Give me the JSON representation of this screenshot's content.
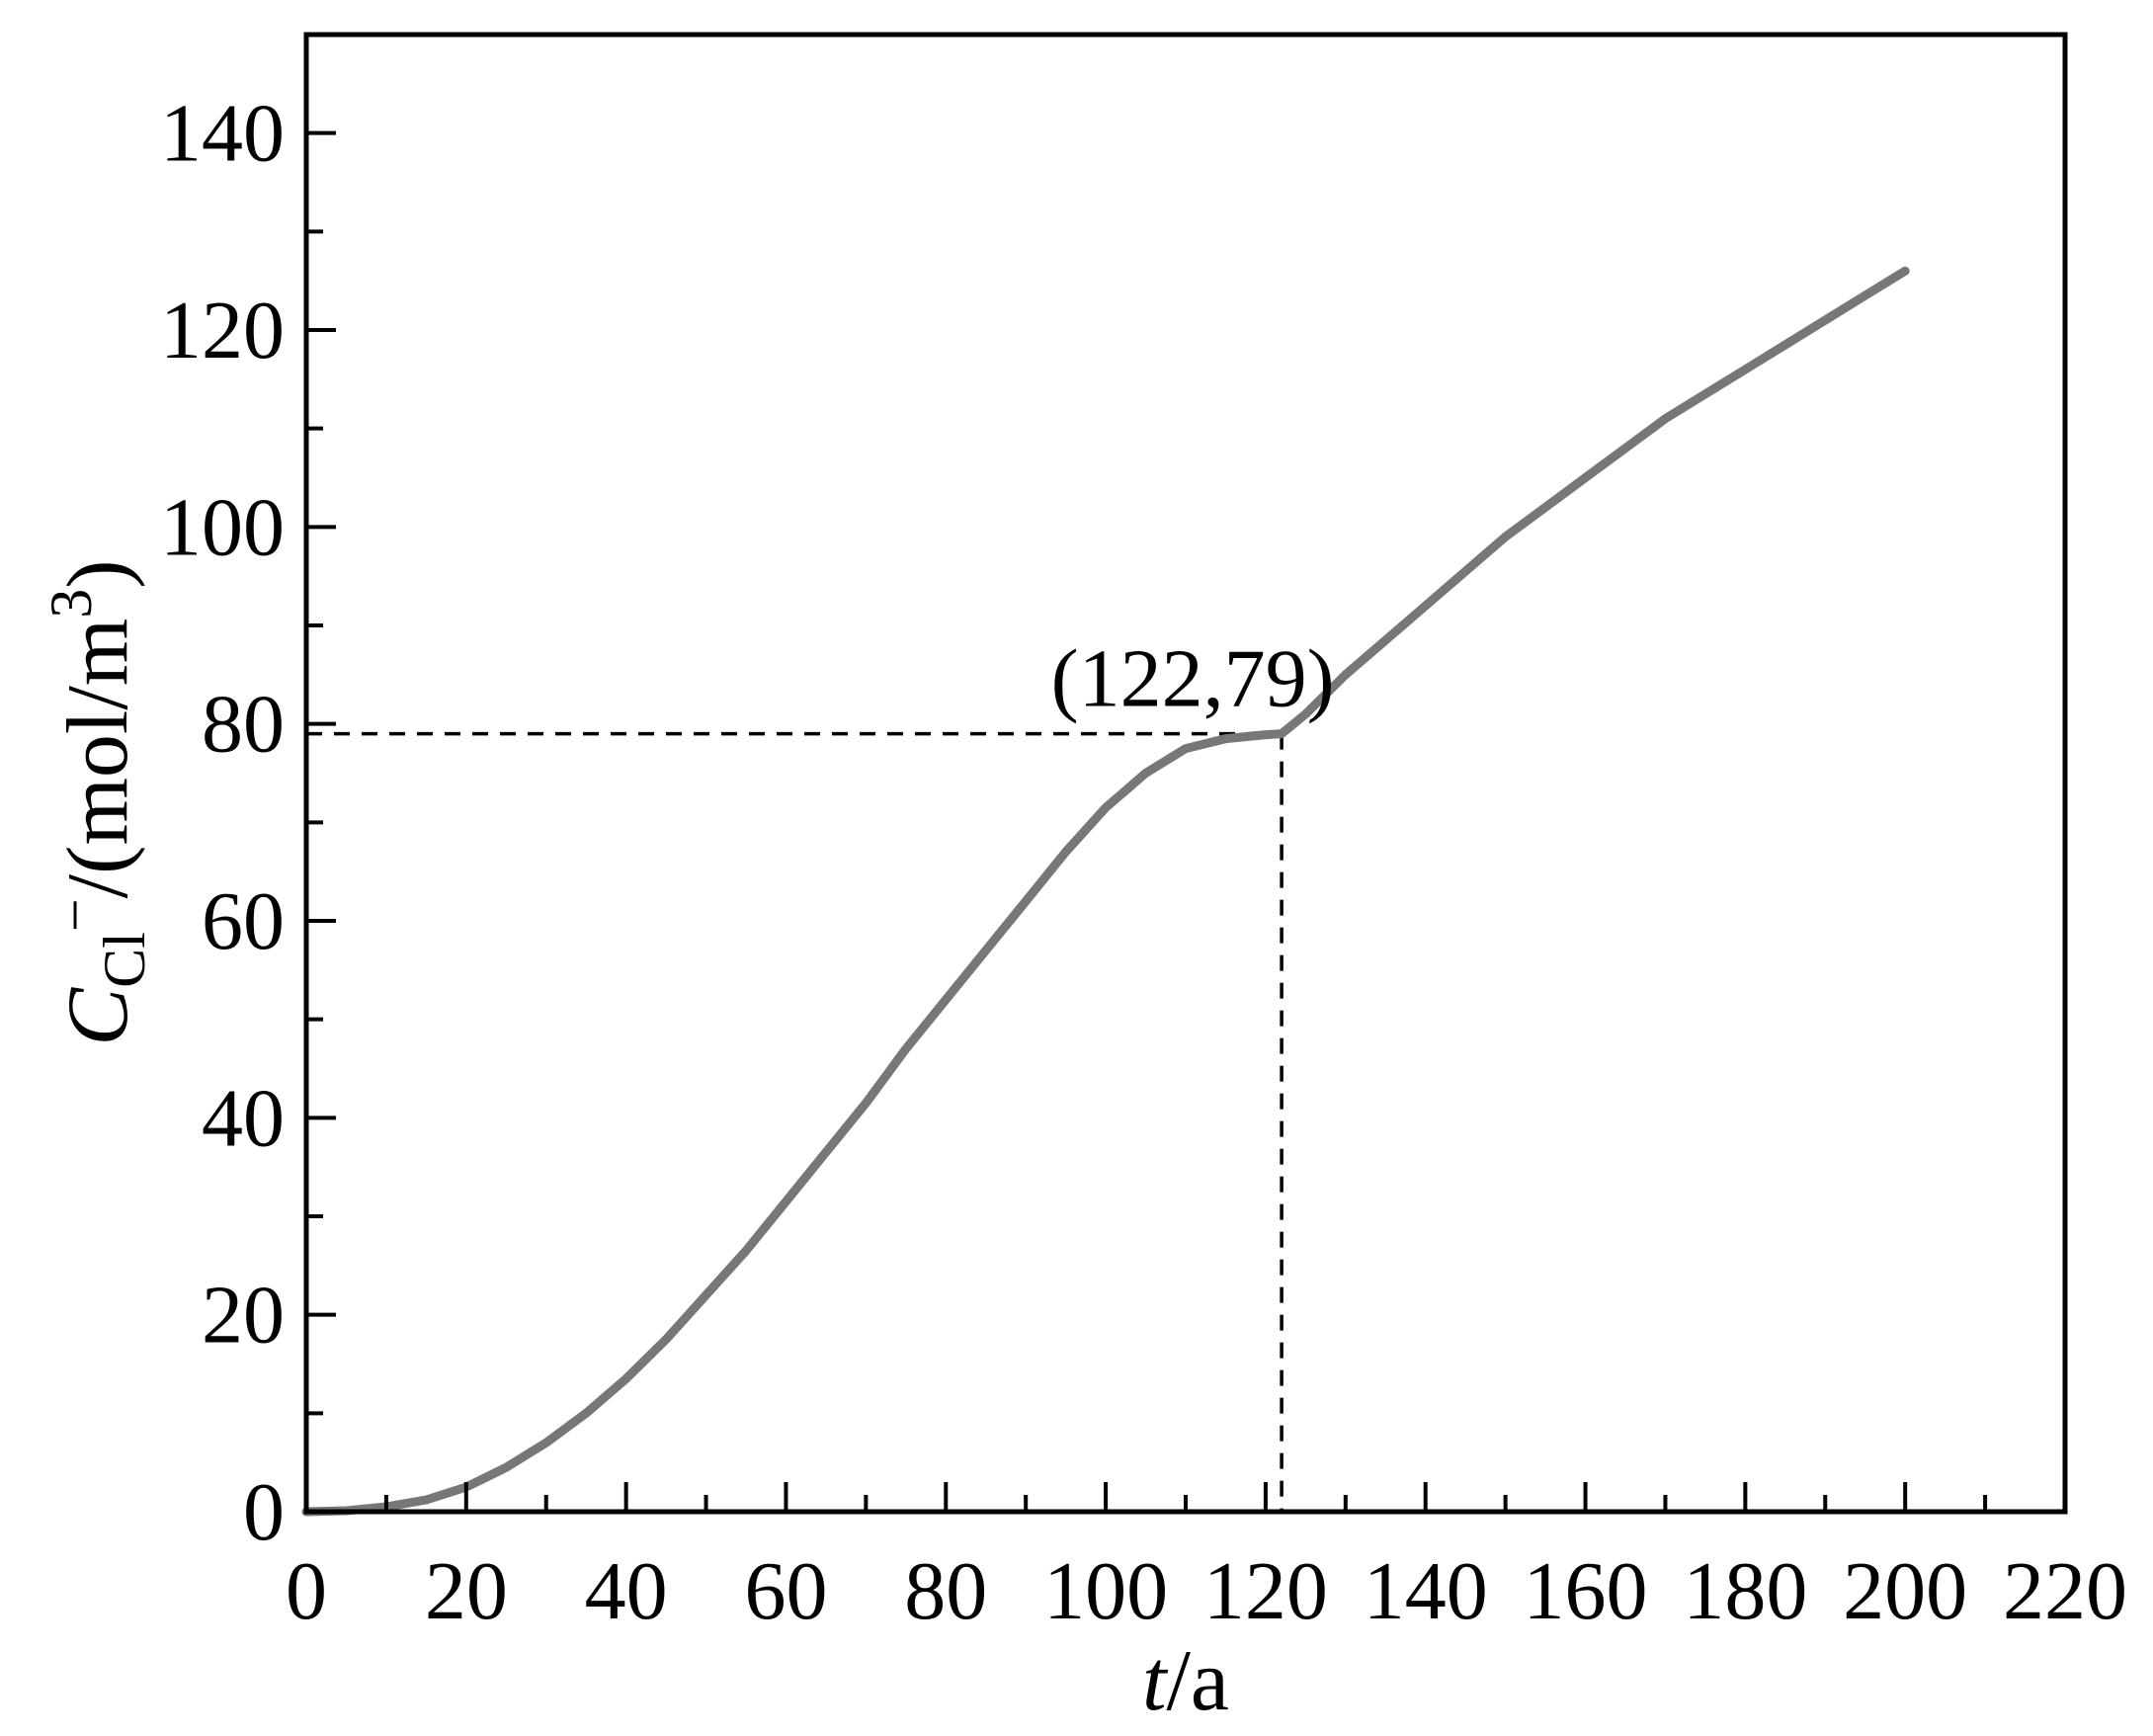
{
  "chart_data": {
    "type": "line",
    "title": "",
    "xlabel": {
      "var": "t",
      "unit": "/a"
    },
    "ylabel": {
      "var": "C",
      "sub": "Cl",
      "sup1": "−",
      "unit": "/(mol/m",
      "sup2": "3",
      "close": ")"
    },
    "xlim": [
      0,
      220
    ],
    "ylim": [
      0,
      150
    ],
    "x_ticks": [
      0,
      20,
      40,
      60,
      80,
      100,
      120,
      140,
      160,
      180,
      200,
      220
    ],
    "y_ticks": [
      0,
      20,
      40,
      60,
      80,
      100,
      120,
      140
    ],
    "grid": false,
    "line_color": "#777777",
    "series": [
      {
        "x": [
          0,
          5,
          10,
          15,
          20,
          25,
          30,
          35,
          40,
          45,
          50,
          55,
          60,
          65,
          70,
          75,
          80,
          85,
          90,
          95,
          100,
          105,
          110,
          115,
          120,
          122,
          125,
          130,
          135,
          140,
          145,
          150,
          155,
          160,
          165,
          170,
          175,
          180,
          185,
          190,
          195,
          200
        ],
        "y": [
          0,
          0.1,
          0.5,
          1.2,
          2.5,
          4.5,
          7,
          10,
          13.5,
          17.5,
          22,
          26.5,
          31.5,
          36.5,
          41.5,
          47,
          52,
          57,
          62,
          67,
          71.5,
          75,
          77.5,
          78.5,
          78.9,
          79,
          81,
          85,
          88.5,
          92,
          95.5,
          99,
          102,
          105,
          108,
          111,
          113.5,
          116,
          118.5,
          121,
          123.5,
          126
        ]
      }
    ],
    "annotations": [
      {
        "text": "(122,79)",
        "x": 122,
        "y": 79,
        "guide_lines": "dashed"
      }
    ]
  }
}
